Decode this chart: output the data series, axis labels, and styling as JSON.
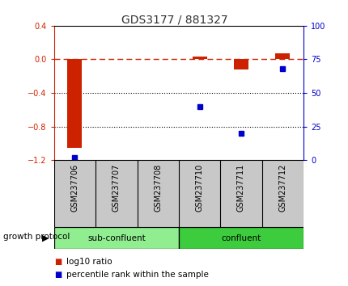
{
  "title": "GDS3177 / 881327",
  "samples": [
    "GSM237706",
    "GSM237707",
    "GSM237708",
    "GSM237710",
    "GSM237711",
    "GSM237712"
  ],
  "log10_ratio": [
    -1.05,
    0.0,
    0.0,
    0.03,
    -0.12,
    0.07
  ],
  "percentile_rank": [
    2,
    null,
    null,
    40,
    20,
    68
  ],
  "ylim_left": [
    -1.2,
    0.4
  ],
  "ylim_right": [
    0,
    100
  ],
  "yticks_left": [
    0.4,
    0.0,
    -0.4,
    -0.8,
    -1.2
  ],
  "yticks_right": [
    100,
    75,
    50,
    25,
    0
  ],
  "groups": [
    {
      "label": "sub-confluent",
      "indices": [
        0,
        1,
        2
      ],
      "color": "#90EE90"
    },
    {
      "label": "confluent",
      "indices": [
        3,
        4,
        5
      ],
      "color": "#3DCC3D"
    }
  ],
  "group_label": "growth protocol",
  "bar_color_red": "#CC2200",
  "bar_color_blue": "#0000CC",
  "dashed_line_color": "#CC2200",
  "dotted_line_color": "#000000",
  "label_bg_color": "#C8C8C8",
  "background_color": "#ffffff",
  "bar_width": 0.35,
  "title_color": "#333333",
  "title_fontsize": 10,
  "tick_fontsize": 7,
  "label_fontsize": 7,
  "legend_fontsize": 7.5
}
